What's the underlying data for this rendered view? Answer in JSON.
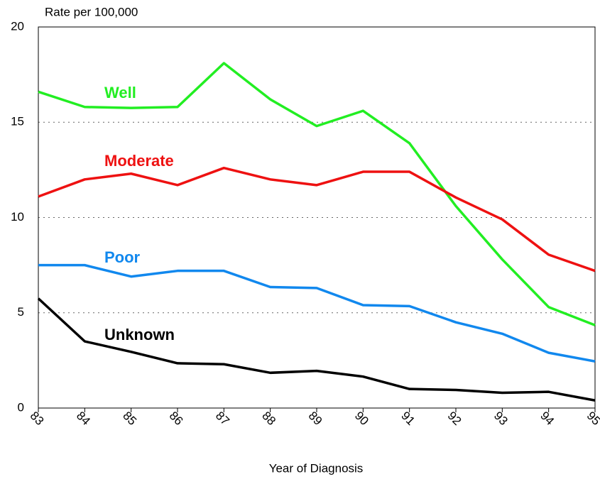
{
  "chart_data": {
    "type": "line",
    "y_label": "Rate per 100,000",
    "x_label": "Year of Diagnosis",
    "categories": [
      "83",
      "84",
      "85",
      "86",
      "87",
      "88",
      "89",
      "90",
      "91",
      "92",
      "93",
      "94",
      "95"
    ],
    "series": [
      {
        "name": "Well",
        "color": "#22ee22",
        "values": [
          16.6,
          15.8,
          15.75,
          15.8,
          18.1,
          16.2,
          14.8,
          15.6,
          13.9,
          10.6,
          7.8,
          5.3,
          4.35
        ]
      },
      {
        "name": "Moderate",
        "color": "#ee1111",
        "values": [
          11.1,
          12.0,
          12.3,
          11.7,
          12.6,
          12.0,
          11.7,
          12.4,
          12.4,
          11.05,
          9.9,
          8.05,
          7.2
        ]
      },
      {
        "name": "Poor",
        "color": "#1188ee",
        "values": [
          7.5,
          7.5,
          6.9,
          7.2,
          7.2,
          6.35,
          6.3,
          5.4,
          5.35,
          4.5,
          3.9,
          2.9,
          2.45
        ]
      },
      {
        "name": "Unknown",
        "color": "#000000",
        "values": [
          5.75,
          3.5,
          2.95,
          2.35,
          2.3,
          1.85,
          1.95,
          1.65,
          1.0,
          0.95,
          0.8,
          0.85,
          0.4
        ]
      }
    ],
    "ylim": [
      0,
      20
    ],
    "yticks": [
      0,
      5,
      10,
      15,
      20
    ],
    "grid": true
  }
}
